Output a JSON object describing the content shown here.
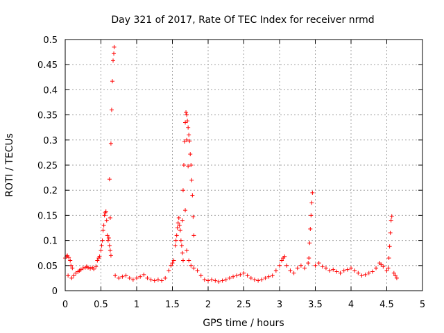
{
  "chart_data": {
    "type": "scatter",
    "title": "Day 321 of 2017, Rate Of TEC Index for receiver nrmd",
    "xlabel": "GPS time / hours",
    "ylabel": "ROTI / TECUs",
    "xlim": [
      0,
      5
    ],
    "ylim": [
      0,
      0.5
    ],
    "xticks": [
      0,
      0.5,
      1,
      1.5,
      2,
      2.5,
      3,
      3.5,
      4,
      4.5,
      5
    ],
    "xtick_labels": [
      "0",
      "0.5",
      "1",
      "1.5",
      "2",
      "2.5",
      "3",
      "3.5",
      "4",
      "4.5",
      "5"
    ],
    "yticks": [
      0,
      0.05,
      0.1,
      0.15,
      0.2,
      0.25,
      0.3,
      0.35,
      0.4,
      0.45,
      0.5
    ],
    "ytick_labels": [
      "0",
      "0.05",
      "0.1",
      "0.15",
      "0.2",
      "0.25",
      "0.3",
      "0.35",
      "0.4",
      "0.45",
      "0.5"
    ],
    "grid": true,
    "marker": "+",
    "color": "#ff0000",
    "series": [
      {
        "name": "ROTI",
        "points": [
          [
            0.0,
            0.065
          ],
          [
            0.02,
            0.068
          ],
          [
            0.03,
            0.07
          ],
          [
            0.05,
            0.066
          ],
          [
            0.07,
            0.06
          ],
          [
            0.08,
            0.05
          ],
          [
            0.1,
            0.045
          ],
          [
            0.04,
            0.03
          ],
          [
            0.09,
            0.025
          ],
          [
            0.12,
            0.03
          ],
          [
            0.15,
            0.035
          ],
          [
            0.18,
            0.038
          ],
          [
            0.2,
            0.04
          ],
          [
            0.22,
            0.042
          ],
          [
            0.25,
            0.045
          ],
          [
            0.28,
            0.046
          ],
          [
            0.3,
            0.048
          ],
          [
            0.32,
            0.046
          ],
          [
            0.35,
            0.044
          ],
          [
            0.38,
            0.046
          ],
          [
            0.4,
            0.043
          ],
          [
            0.43,
            0.048
          ],
          [
            0.45,
            0.06
          ],
          [
            0.47,
            0.065
          ],
          [
            0.48,
            0.068
          ],
          [
            0.5,
            0.08
          ],
          [
            0.51,
            0.09
          ],
          [
            0.52,
            0.1
          ],
          [
            0.53,
            0.12
          ],
          [
            0.54,
            0.13
          ],
          [
            0.55,
            0.15
          ],
          [
            0.56,
            0.155
          ],
          [
            0.57,
            0.158
          ],
          [
            0.58,
            0.14
          ],
          [
            0.59,
            0.11
          ],
          [
            0.6,
            0.1
          ],
          [
            0.61,
            0.105
          ],
          [
            0.62,
            0.09
          ],
          [
            0.63,
            0.145
          ],
          [
            0.62,
            0.222
          ],
          [
            0.64,
            0.293
          ],
          [
            0.65,
            0.36
          ],
          [
            0.66,
            0.417
          ],
          [
            0.67,
            0.458
          ],
          [
            0.68,
            0.472
          ],
          [
            0.685,
            0.485
          ],
          [
            0.63,
            0.08
          ],
          [
            0.64,
            0.07
          ],
          [
            0.7,
            0.03
          ],
          [
            0.75,
            0.025
          ],
          [
            0.8,
            0.028
          ],
          [
            0.85,
            0.03
          ],
          [
            0.9,
            0.025
          ],
          [
            0.95,
            0.022
          ],
          [
            1.0,
            0.025
          ],
          [
            1.05,
            0.028
          ],
          [
            1.1,
            0.032
          ],
          [
            1.15,
            0.025
          ],
          [
            1.2,
            0.022
          ],
          [
            1.25,
            0.02
          ],
          [
            1.3,
            0.022
          ],
          [
            1.35,
            0.02
          ],
          [
            1.4,
            0.025
          ],
          [
            1.45,
            0.04
          ],
          [
            1.48,
            0.05
          ],
          [
            1.5,
            0.055
          ],
          [
            1.52,
            0.06
          ],
          [
            1.54,
            0.09
          ],
          [
            1.55,
            0.1
          ],
          [
            1.56,
            0.11
          ],
          [
            1.57,
            0.125
          ],
          [
            1.58,
            0.135
          ],
          [
            1.59,
            0.145
          ],
          [
            1.6,
            0.13
          ],
          [
            1.61,
            0.12
          ],
          [
            1.62,
            0.1
          ],
          [
            1.63,
            0.09
          ],
          [
            1.64,
            0.075
          ],
          [
            1.65,
            0.06
          ],
          [
            1.64,
            0.14
          ],
          [
            1.65,
            0.2
          ],
          [
            1.66,
            0.25
          ],
          [
            1.67,
            0.297
          ],
          [
            1.68,
            0.335
          ],
          [
            1.69,
            0.355
          ],
          [
            1.7,
            0.35
          ],
          [
            1.71,
            0.338
          ],
          [
            1.72,
            0.325
          ],
          [
            1.73,
            0.31
          ],
          [
            1.74,
            0.298
          ],
          [
            1.75,
            0.272
          ],
          [
            1.76,
            0.25
          ],
          [
            1.77,
            0.22
          ],
          [
            1.78,
            0.19
          ],
          [
            1.79,
            0.147
          ],
          [
            1.8,
            0.11
          ],
          [
            1.7,
            0.3
          ],
          [
            1.72,
            0.248
          ],
          [
            1.68,
            0.16
          ],
          [
            1.7,
            0.08
          ],
          [
            1.73,
            0.06
          ],
          [
            1.76,
            0.05
          ],
          [
            1.8,
            0.045
          ],
          [
            1.85,
            0.04
          ],
          [
            1.9,
            0.03
          ],
          [
            1.95,
            0.022
          ],
          [
            2.0,
            0.02
          ],
          [
            2.05,
            0.022
          ],
          [
            2.1,
            0.02
          ],
          [
            2.15,
            0.018
          ],
          [
            2.2,
            0.02
          ],
          [
            2.25,
            0.022
          ],
          [
            2.3,
            0.025
          ],
          [
            2.35,
            0.028
          ],
          [
            2.4,
            0.03
          ],
          [
            2.45,
            0.032
          ],
          [
            2.5,
            0.035
          ],
          [
            2.55,
            0.03
          ],
          [
            2.6,
            0.025
          ],
          [
            2.65,
            0.022
          ],
          [
            2.7,
            0.02
          ],
          [
            2.75,
            0.022
          ],
          [
            2.8,
            0.025
          ],
          [
            2.85,
            0.028
          ],
          [
            2.9,
            0.03
          ],
          [
            2.95,
            0.04
          ],
          [
            3.0,
            0.05
          ],
          [
            3.03,
            0.06
          ],
          [
            3.05,
            0.065
          ],
          [
            3.07,
            0.068
          ],
          [
            3.1,
            0.05
          ],
          [
            3.15,
            0.04
          ],
          [
            3.2,
            0.035
          ],
          [
            3.25,
            0.045
          ],
          [
            3.3,
            0.05
          ],
          [
            3.35,
            0.045
          ],
          [
            3.4,
            0.055
          ],
          [
            3.41,
            0.065
          ],
          [
            3.42,
            0.095
          ],
          [
            3.43,
            0.123
          ],
          [
            3.44,
            0.15
          ],
          [
            3.45,
            0.175
          ],
          [
            3.46,
            0.195
          ],
          [
            3.5,
            0.05
          ],
          [
            3.55,
            0.055
          ],
          [
            3.6,
            0.048
          ],
          [
            3.65,
            0.045
          ],
          [
            3.7,
            0.04
          ],
          [
            3.75,
            0.042
          ],
          [
            3.8,
            0.038
          ],
          [
            3.85,
            0.035
          ],
          [
            3.9,
            0.04
          ],
          [
            3.95,
            0.042
          ],
          [
            4.0,
            0.045
          ],
          [
            4.05,
            0.04
          ],
          [
            4.1,
            0.035
          ],
          [
            4.15,
            0.03
          ],
          [
            4.2,
            0.032
          ],
          [
            4.25,
            0.035
          ],
          [
            4.3,
            0.038
          ],
          [
            4.35,
            0.045
          ],
          [
            4.4,
            0.055
          ],
          [
            4.42,
            0.052
          ],
          [
            4.45,
            0.048
          ],
          [
            4.5,
            0.04
          ],
          [
            4.52,
            0.045
          ],
          [
            4.53,
            0.065
          ],
          [
            4.54,
            0.088
          ],
          [
            4.55,
            0.115
          ],
          [
            4.56,
            0.14
          ],
          [
            4.57,
            0.148
          ],
          [
            4.6,
            0.035
          ],
          [
            4.62,
            0.03
          ],
          [
            4.64,
            0.025
          ]
        ]
      }
    ]
  }
}
